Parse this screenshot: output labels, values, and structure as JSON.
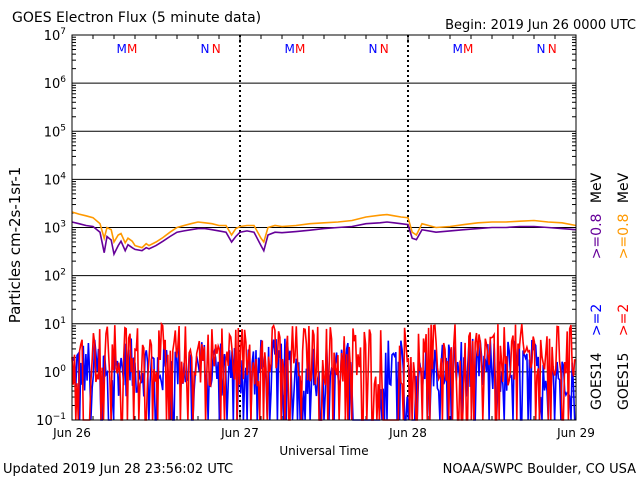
{
  "header": {
    "title": "GOES Electron Flux (5 minute data)",
    "begin": "Begin: 2019 Jun 26 0000 UTC"
  },
  "footer": {
    "updated": "Updated 2019 Jun 28 23:56:02 UTC",
    "credit": "NOAA/SWPC Boulder, CO USA"
  },
  "chart_data": {
    "type": "line",
    "title": "GOES Electron Flux (5 minute data)",
    "xlabel": "Universal Time",
    "ylabel": "Particles cm-2s-1sr-1",
    "y_scale": "log",
    "ylim": [
      0.1,
      10000000
    ],
    "y_tick_exponents": [
      -1,
      0,
      1,
      2,
      3,
      4,
      5,
      6,
      7
    ],
    "x_range_hours": [
      0,
      72
    ],
    "x_ticks": [
      {
        "label": "Jun 26",
        "hour": 0
      },
      {
        "label": "Jun 27",
        "hour": 24
      },
      {
        "label": "Jun 28",
        "hour": 48
      },
      {
        "label": "Jun 29",
        "hour": 72
      }
    ],
    "threshold_line": 1000,
    "markers": [
      {
        "label": "M",
        "hour": 7.1,
        "color": "#0000ff"
      },
      {
        "label": "M",
        "hour": 8.6,
        "color": "#ff0000"
      },
      {
        "label": "N",
        "hour": 19.0,
        "color": "#0000ff"
      },
      {
        "label": "N",
        "hour": 20.6,
        "color": "#ff0000"
      },
      {
        "label": "M",
        "hour": 31.1,
        "color": "#0000ff"
      },
      {
        "label": "M",
        "hour": 32.6,
        "color": "#ff0000"
      },
      {
        "label": "N",
        "hour": 43.0,
        "color": "#0000ff"
      },
      {
        "label": "N",
        "hour": 44.6,
        "color": "#ff0000"
      },
      {
        "label": "M",
        "hour": 55.1,
        "color": "#0000ff"
      },
      {
        "label": "M",
        "hour": 56.6,
        "color": "#ff0000"
      },
      {
        "label": "N",
        "hour": 67.0,
        "color": "#0000ff"
      },
      {
        "label": "N",
        "hour": 68.6,
        "color": "#ff0000"
      }
    ],
    "legend": {
      "goes14": {
        "name": "GOES14",
        "ge2": ">=2",
        "ge08": ">=0.8"
      },
      "goes15": {
        "name": "GOES15",
        "ge2": ">=2",
        "ge08": ">=0.8"
      },
      "unit": "MeV"
    },
    "series": [
      {
        "name": "GOES15 >=0.8 MeV",
        "color": "#ff9900",
        "x": [
          0,
          1,
          2,
          3,
          4,
          4.6,
          5,
          5.6,
          6,
          6.6,
          7,
          7.6,
          8,
          8.6,
          9,
          10,
          10.6,
          11,
          12,
          13,
          14,
          15,
          16,
          17,
          18,
          19,
          20,
          21,
          22,
          22.8,
          23.4,
          24,
          25,
          26,
          27,
          27.4,
          28,
          29,
          30,
          32,
          34,
          36,
          38,
          40,
          42,
          44,
          45,
          46,
          47,
          48,
          48.6,
          49.2,
          50,
          52,
          54,
          56,
          58,
          60,
          62,
          64,
          66,
          68,
          70,
          72
        ],
        "y": [
          2100,
          1900,
          1750,
          1600,
          1200,
          600,
          1000,
          900,
          500,
          700,
          750,
          480,
          600,
          520,
          420,
          380,
          460,
          420,
          500,
          620,
          800,
          1000,
          1100,
          1200,
          1300,
          1250,
          1200,
          1100,
          1100,
          700,
          950,
          1050,
          1100,
          1100,
          600,
          500,
          1000,
          1100,
          1050,
          1100,
          1200,
          1250,
          1300,
          1400,
          1650,
          1800,
          1850,
          1750,
          1650,
          1600,
          800,
          700,
          1200,
          1000,
          1050,
          1150,
          1250,
          1300,
          1300,
          1350,
          1400,
          1300,
          1250,
          1100
        ]
      },
      {
        "name": "GOES14 >=0.8 MeV",
        "color": "#660099",
        "x": [
          0,
          1,
          2,
          3,
          4,
          4.6,
          5,
          5.6,
          6,
          6.6,
          7,
          7.6,
          8,
          8.6,
          9,
          10,
          10.6,
          11,
          12,
          13,
          14,
          15,
          16,
          17,
          18,
          19,
          20,
          21,
          22,
          22.8,
          23.4,
          24,
          25,
          26,
          27,
          27.4,
          28,
          29,
          30,
          32,
          34,
          36,
          38,
          40,
          42,
          44,
          45,
          46,
          47,
          48,
          48.6,
          49.2,
          50,
          52,
          54,
          56,
          58,
          60,
          62,
          64,
          66,
          68,
          70,
          72
        ],
        "y": [
          1300,
          1200,
          1100,
          1050,
          800,
          300,
          650,
          550,
          280,
          420,
          520,
          330,
          440,
          380,
          350,
          330,
          380,
          360,
          420,
          520,
          650,
          800,
          850,
          900,
          950,
          950,
          900,
          850,
          800,
          500,
          650,
          800,
          850,
          800,
          420,
          330,
          700,
          800,
          780,
          820,
          880,
          950,
          1000,
          1050,
          1200,
          1250,
          1300,
          1250,
          1200,
          1150,
          600,
          560,
          900,
          800,
          850,
          900,
          950,
          1000,
          1000,
          1050,
          1050,
          1000,
          950,
          900
        ]
      }
    ]
  }
}
